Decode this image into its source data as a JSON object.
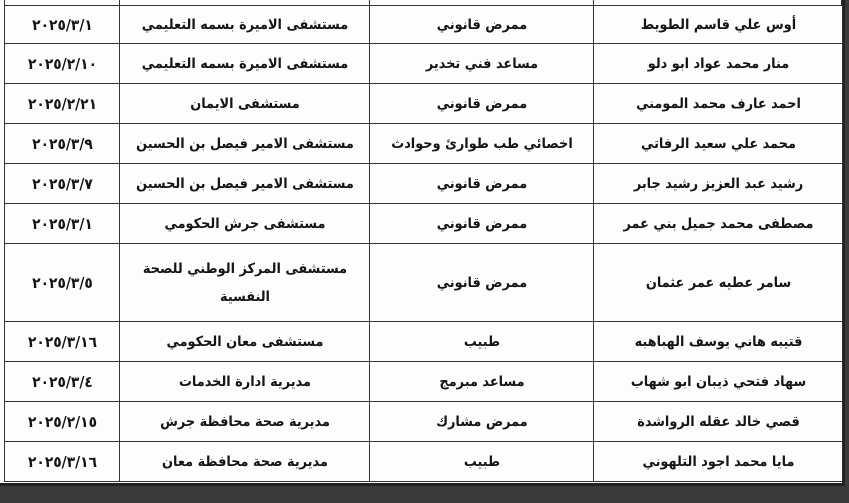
{
  "table": {
    "rows": [
      {
        "date": "٢٠٢٥/٣/١",
        "hospital": "مستشفى الاميرة بسمه التعليمي",
        "job": "ممرض قانوني",
        "name": "أوس علي قاسم الطويط"
      },
      {
        "date": "٢٠٢٥/٢/١٠",
        "hospital": "مستشفى الاميرة بسمه التعليمي",
        "job": "مساعد فني تخدير",
        "name": "منار محمد عواد ابو دلو"
      },
      {
        "date": "٢٠٢٥/٢/٢١",
        "hospital": "مستشفى الايمان",
        "job": "ممرض قانوني",
        "name": "احمد عارف محمد المومني"
      },
      {
        "date": "٢٠٢٥/٣/٩",
        "hospital": "مستشفى الامير فيصل بن الحسين",
        "job": "اخصائي طب طوارئ وحوادث",
        "name": "محمد علي سعيد الرفاتي"
      },
      {
        "date": "٢٠٢٥/٣/٧",
        "hospital": "مستشفى الامير فيصل بن الحسين",
        "job": "ممرض قانوني",
        "name": "رشيد عبد العزيز رشيد جابر"
      },
      {
        "date": "٢٠٢٥/٣/١",
        "hospital": "مستشفى جرش الحكومي",
        "job": "ممرض قانوني",
        "name": "مصطفى محمد جميل بني عمر"
      },
      {
        "date": "٢٠٢٥/٣/٥",
        "hospital": "مستشفى المركز الوطني للصحة النفسية",
        "job": "ممرض قانوني",
        "name": "سامر عطيه عمر عثمان"
      },
      {
        "date": "٢٠٢٥/٣/١٦",
        "hospital": "مستشفى معان الحكومي",
        "job": "طبيب",
        "name": "قتيبه هاني يوسف الهباهبه"
      },
      {
        "date": "٢٠٢٥/٣/٤",
        "hospital": "مديرية ادارة الخدمات",
        "job": "مساعد مبرمج",
        "name": "سهاد فتحي ذيبان ابو شهاب"
      },
      {
        "date": "٢٠٢٥/٢/١٥",
        "hospital": "مديرية صحة محافظة جرش",
        "job": "ممرض مشارك",
        "name": "قصي خالد عقله الرواشدة"
      },
      {
        "date": "٢٠٢٥/٣/١٦",
        "hospital": "مديرية صحة محافظة معان",
        "job": "طبيب",
        "name": "مايا محمد اجود التلهوني"
      }
    ]
  }
}
